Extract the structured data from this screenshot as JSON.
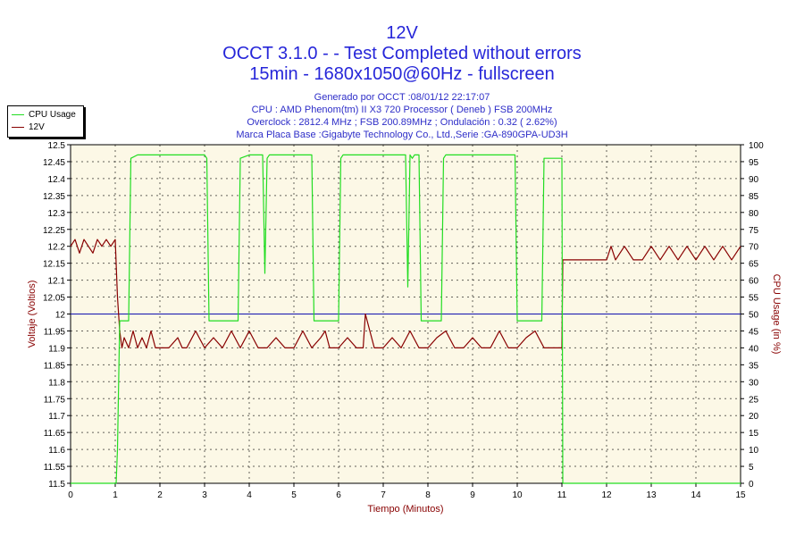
{
  "titles": {
    "line1": "12V",
    "line2": "OCCT 3.1.0 -  - Test Completed without errors",
    "line3": "15min - 1680x1050@60Hz - fullscreen"
  },
  "info": {
    "generated": "Generado por OCCT :08/01/12 22:17:07",
    "cpu": "CPU : AMD Phenom(tm) II X3 720 Processor ( Deneb ) FSB 200MHz",
    "overclock": "Overclock : 2812.4 MHz ; FSB 200.89MHz ; Ondulación : 0.32 ( 2.62%)",
    "motherboard": "Marca Placa Base :Gigabyte Technology Co., Ltd.,Serie :GA-890GPA-UD3H"
  },
  "legend": {
    "items": [
      {
        "label": "CPU Usage",
        "color": "#22dd22"
      },
      {
        "label": "12V",
        "color": "#880000"
      }
    ],
    "placement": "top-left"
  },
  "colors": {
    "plot_background": "#fcf8e6",
    "cpu_line": "#22dd22",
    "voltage_line": "#880000",
    "reference_line": "#1010b0",
    "grid": "#000000",
    "left_axis_label": "#880000",
    "right_axis_label": "#880000",
    "x_axis_label": "#880000"
  },
  "chart_data": {
    "type": "line",
    "title": "12V",
    "xlabel": "Tiempo (Minutos)",
    "ylabel": "Voltaje (Voltios)",
    "y2label": "CPU Usage (in %)",
    "xlim": [
      0,
      15
    ],
    "ylim": [
      11.5,
      12.5
    ],
    "y2lim": [
      0,
      100
    ],
    "grid": true,
    "x_ticks": [
      "0",
      "1",
      "2",
      "3",
      "4",
      "5",
      "6",
      "7",
      "8",
      "9",
      "10",
      "11",
      "12",
      "13",
      "14",
      "15"
    ],
    "y_ticks": [
      "11.5",
      "11.55",
      "11.6",
      "11.65",
      "11.7",
      "11.75",
      "11.8",
      "11.85",
      "11.9",
      "11.95",
      "12",
      "12.05",
      "12.1",
      "12.15",
      "12.2",
      "12.25",
      "12.3",
      "12.35",
      "12.4",
      "12.45",
      "12.5"
    ],
    "y2_ticks": [
      "0",
      "5",
      "10",
      "15",
      "20",
      "25",
      "30",
      "35",
      "40",
      "45",
      "50",
      "55",
      "60",
      "65",
      "70",
      "75",
      "80",
      "85",
      "90",
      "95",
      "100"
    ],
    "reference_line": {
      "axis": "y",
      "value": 12.0
    },
    "series": [
      {
        "name": "12V",
        "axis": "left",
        "x": [
          0,
          0.1,
          0.2,
          0.3,
          0.4,
          0.5,
          0.6,
          0.7,
          0.8,
          0.9,
          1.0,
          1.02,
          1.05,
          1.1,
          1.15,
          1.2,
          1.3,
          1.4,
          1.5,
          1.6,
          1.7,
          1.8,
          1.9,
          2.0,
          2.2,
          2.4,
          2.5,
          2.6,
          2.8,
          3.0,
          3.2,
          3.4,
          3.6,
          3.8,
          4.0,
          4.2,
          4.4,
          4.6,
          4.8,
          5.0,
          5.2,
          5.4,
          5.6,
          5.7,
          5.8,
          6.0,
          6.2,
          6.4,
          6.55,
          6.6,
          6.8,
          7.0,
          7.2,
          7.4,
          7.6,
          7.8,
          8.0,
          8.2,
          8.4,
          8.6,
          8.8,
          9.0,
          9.2,
          9.4,
          9.6,
          9.8,
          10.0,
          10.2,
          10.4,
          10.6,
          10.8,
          11.0,
          11.02,
          11.05,
          11.2,
          11.4,
          11.6,
          11.8,
          12.0,
          12.1,
          12.2,
          12.4,
          12.6,
          12.8,
          13.0,
          13.2,
          13.4,
          13.6,
          13.8,
          14.0,
          14.2,
          14.4,
          14.6,
          14.8,
          15.0
        ],
        "values": [
          12.2,
          12.22,
          12.18,
          12.22,
          12.2,
          12.18,
          12.22,
          12.2,
          12.22,
          12.2,
          12.22,
          12.15,
          12.05,
          11.95,
          11.9,
          11.93,
          11.9,
          11.95,
          11.9,
          11.93,
          11.9,
          11.95,
          11.9,
          11.9,
          11.9,
          11.93,
          11.9,
          11.9,
          11.95,
          11.9,
          11.93,
          11.9,
          11.95,
          11.9,
          11.95,
          11.9,
          11.9,
          11.93,
          11.9,
          11.9,
          11.95,
          11.9,
          11.93,
          11.95,
          11.9,
          11.9,
          11.93,
          11.9,
          11.9,
          12.0,
          11.9,
          11.9,
          11.93,
          11.9,
          11.95,
          11.9,
          11.9,
          11.93,
          11.95,
          11.9,
          11.9,
          11.93,
          11.9,
          11.9,
          11.95,
          11.9,
          11.9,
          11.93,
          11.95,
          11.9,
          11.9,
          11.9,
          12.16,
          12.16,
          12.16,
          12.16,
          12.16,
          12.16,
          12.16,
          12.2,
          12.16,
          12.2,
          12.16,
          12.16,
          12.2,
          12.16,
          12.2,
          12.16,
          12.2,
          12.16,
          12.2,
          12.16,
          12.2,
          12.16,
          12.2
        ]
      },
      {
        "name": "CPU Usage",
        "axis": "right",
        "x": [
          0,
          1.0,
          1.02,
          1.05,
          1.1,
          1.2,
          1.3,
          1.35,
          1.5,
          2.0,
          2.5,
          3.0,
          3.05,
          3.1,
          3.2,
          3.7,
          3.75,
          3.8,
          4.0,
          4.3,
          4.35,
          4.4,
          4.45,
          4.5,
          5.0,
          5.4,
          5.45,
          5.5,
          5.95,
          6.0,
          6.05,
          6.1,
          6.5,
          7.0,
          7.5,
          7.55,
          7.6,
          7.65,
          7.7,
          7.75,
          7.8,
          7.85,
          8.0,
          8.05,
          8.1,
          8.3,
          8.35,
          8.4,
          9.0,
          9.5,
          9.95,
          10.0,
          10.05,
          10.1,
          10.5,
          10.55,
          10.6,
          11.0,
          11.02,
          11.05,
          15.0
        ],
        "values": [
          0,
          0,
          0,
          10,
          48,
          48,
          48,
          96,
          97,
          97,
          97,
          97,
          96,
          48,
          48,
          48,
          48,
          96,
          97,
          97,
          62,
          96,
          97,
          97,
          97,
          97,
          48,
          48,
          48,
          48,
          96,
          97,
          97,
          97,
          97,
          58,
          97,
          96,
          97,
          97,
          97,
          48,
          48,
          48,
          48,
          48,
          96,
          97,
          97,
          97,
          97,
          48,
          48,
          48,
          48,
          48,
          96,
          96,
          0,
          0,
          0
        ]
      }
    ]
  }
}
